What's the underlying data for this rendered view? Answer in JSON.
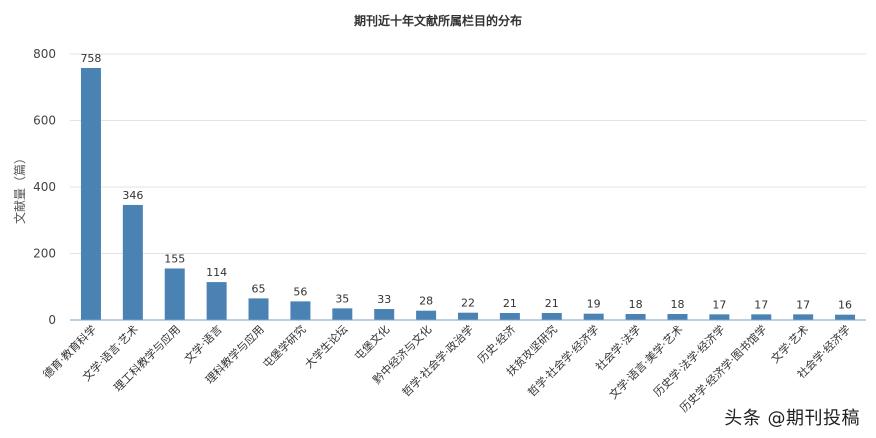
{
  "chart_data": {
    "type": "bar",
    "title": "期刊近十年文献所属栏目的分布",
    "xlabel": "",
    "ylabel": "文献量（篇）",
    "ylim": [
      0,
      800
    ],
    "yticks": [
      0,
      200,
      400,
      600,
      800
    ],
    "grid": true,
    "legend": "none",
    "bar_color": "#4a82b4",
    "categories": [
      "德育·教育科学",
      "文学·语言·艺术",
      "理工科教学与应用",
      "文学·语言",
      "理科教学与应用",
      "屯堡学研究",
      "大学生论坛",
      "屯堡文化",
      "黔中经济与文化",
      "哲学·社会学·政治学",
      "历史·经济",
      "扶贫攻坚研究",
      "哲学·社会学·经济学",
      "社会学·法学",
      "文学·语言·美学·艺术",
      "历史学·法学·经济学",
      "历史学·经济学·图书馆学",
      "文学·艺术",
      "社会学·经济学"
    ],
    "values": [
      758,
      346,
      155,
      114,
      65,
      56,
      35,
      33,
      28,
      22,
      21,
      21,
      19,
      18,
      18,
      17,
      17,
      17,
      16
    ]
  },
  "watermark": "头条 @期刊投稿"
}
